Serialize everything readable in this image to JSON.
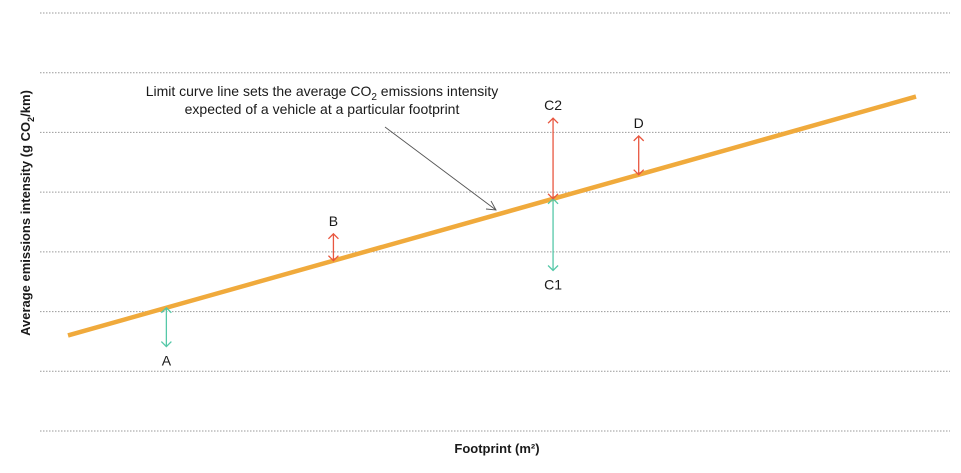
{
  "chart_data": {
    "type": "line",
    "xlabel": "Footprint (m²)",
    "ylabel": "Average emissions intensity (g CO₂/km)",
    "ylabel_parts": {
      "pre": "Average emissions intensity (g CO",
      "sub": "2",
      "post": "/km)"
    },
    "xlim": [
      0,
      100
    ],
    "ylim": [
      0,
      7
    ],
    "grid": true,
    "series": [
      {
        "x": [
          0,
          100
        ],
        "y": [
          1.6,
          5.6
        ]
      }
    ],
    "annotation": {
      "line1_parts": {
        "pre": "Limit curve line sets the average CO",
        "sub": "2",
        "post": " emissions intensity"
      },
      "line2": "expected of a vehicle at a particular footprint"
    },
    "points": [
      {
        "label": "A",
        "x": 11.6,
        "direction": "below",
        "magnitude": 0.65,
        "color": "#55c8a8"
      },
      {
        "label": "B",
        "x": 31.3,
        "direction": "above",
        "magnitude": 0.45,
        "color": "#e8563f"
      },
      {
        "label": "C1",
        "x": 57.2,
        "direction": "below",
        "magnitude": 1.2,
        "color": "#55c8a8"
      },
      {
        "label": "C2",
        "x": 57.2,
        "direction": "above",
        "magnitude": 1.35,
        "color": "#e8563f"
      },
      {
        "label": "D",
        "x": 67.3,
        "direction": "above",
        "magnitude": 0.65,
        "color": "#e8563f"
      }
    ]
  }
}
